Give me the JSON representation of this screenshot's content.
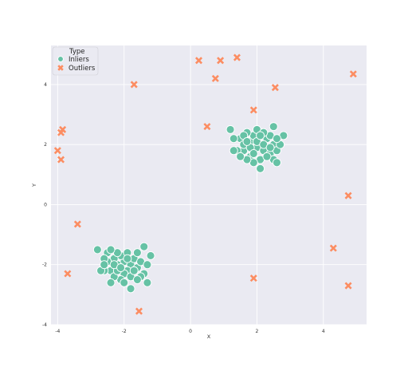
{
  "chart_data": {
    "type": "scatter",
    "xlabel": "X",
    "ylabel": "Y",
    "xlim": [
      -4.2,
      5.3
    ],
    "ylim": [
      -4.0,
      5.3
    ],
    "xticks": [
      -4,
      -2,
      0,
      2,
      4
    ],
    "yticks": [
      -4,
      -2,
      0,
      2,
      4
    ],
    "grid": true,
    "legend": {
      "title": "Type",
      "placement": "top-left"
    },
    "series": [
      {
        "name": "Inliers",
        "marker": "circle",
        "color": "#66c2a5",
        "points": [
          [
            -2.0,
            -1.9
          ],
          [
            -1.8,
            -2.0
          ],
          [
            -2.2,
            -2.0
          ],
          [
            -2.1,
            -1.7
          ],
          [
            -1.9,
            -2.2
          ],
          [
            -2.3,
            -1.8
          ],
          [
            -1.7,
            -1.8
          ],
          [
            -2.0,
            -2.3
          ],
          [
            -2.4,
            -2.2
          ],
          [
            -1.6,
            -2.1
          ],
          [
            -2.5,
            -1.9
          ],
          [
            -1.5,
            -1.9
          ],
          [
            -2.1,
            -2.5
          ],
          [
            -1.8,
            -2.4
          ],
          [
            -2.3,
            -2.4
          ],
          [
            -2.2,
            -1.6
          ],
          [
            -1.9,
            -1.6
          ],
          [
            -1.6,
            -1.6
          ],
          [
            -2.5,
            -1.6
          ],
          [
            -2.6,
            -2.2
          ],
          [
            -1.4,
            -2.3
          ],
          [
            -1.8,
            -2.8
          ],
          [
            -2.0,
            -2.6
          ],
          [
            -1.3,
            -2.6
          ],
          [
            -2.8,
            -1.5
          ],
          [
            -1.2,
            -1.7
          ],
          [
            -1.4,
            -1.4
          ],
          [
            -2.7,
            -2.2
          ],
          [
            -2.4,
            -2.6
          ],
          [
            -2.2,
            -2.2
          ],
          [
            -1.7,
            -2.2
          ],
          [
            -2.6,
            -1.8
          ],
          [
            -1.5,
            -2.4
          ],
          [
            -2.3,
            -2.0
          ],
          [
            -1.9,
            -1.8
          ],
          [
            -2.1,
            -2.1
          ],
          [
            -2.6,
            -2.0
          ],
          [
            -1.6,
            -2.5
          ],
          [
            -2.4,
            -1.5
          ],
          [
            -1.3,
            -2.0
          ],
          [
            2.0,
            1.9
          ],
          [
            1.8,
            2.1
          ],
          [
            2.2,
            1.8
          ],
          [
            1.9,
            2.3
          ],
          [
            2.3,
            2.2
          ],
          [
            1.6,
            1.8
          ],
          [
            2.4,
            1.7
          ],
          [
            1.7,
            2.4
          ],
          [
            2.1,
            1.5
          ],
          [
            2.5,
            2.0
          ],
          [
            1.5,
            2.2
          ],
          [
            2.0,
            2.5
          ],
          [
            1.8,
            1.6
          ],
          [
            2.4,
            2.3
          ],
          [
            1.6,
            2.0
          ],
          [
            2.2,
            2.4
          ],
          [
            2.6,
            1.8
          ],
          [
            1.4,
            1.8
          ],
          [
            1.9,
            1.4
          ],
          [
            2.5,
            1.5
          ],
          [
            1.3,
            2.2
          ],
          [
            2.7,
            2.0
          ],
          [
            1.7,
            1.5
          ],
          [
            2.8,
            2.3
          ],
          [
            1.2,
            2.5
          ],
          [
            2.5,
            2.6
          ],
          [
            2.1,
            1.2
          ],
          [
            2.6,
            1.4
          ],
          [
            1.3,
            1.8
          ],
          [
            2.0,
            2.1
          ],
          [
            1.8,
            1.9
          ],
          [
            2.3,
            1.6
          ],
          [
            1.6,
            2.3
          ],
          [
            2.2,
            2.0
          ],
          [
            1.9,
            1.7
          ],
          [
            2.4,
            1.9
          ],
          [
            1.7,
            2.1
          ],
          [
            2.1,
            2.3
          ],
          [
            1.5,
            1.6
          ],
          [
            2.6,
            2.2
          ]
        ]
      },
      {
        "name": "Outliers",
        "marker": "x",
        "color": "#fc8d62",
        "points": [
          [
            -4.0,
            1.8
          ],
          [
            -3.9,
            2.4
          ],
          [
            -3.85,
            2.5
          ],
          [
            -3.9,
            1.5
          ],
          [
            -3.4,
            -0.65
          ],
          [
            -3.7,
            -2.3
          ],
          [
            -1.7,
            4.0
          ],
          [
            -1.55,
            -3.55
          ],
          [
            0.25,
            4.8
          ],
          [
            0.75,
            4.2
          ],
          [
            0.9,
            4.8
          ],
          [
            1.4,
            4.9
          ],
          [
            0.5,
            2.6
          ],
          [
            1.9,
            3.15
          ],
          [
            2.55,
            3.9
          ],
          [
            1.9,
            -2.45
          ],
          [
            4.9,
            4.35
          ],
          [
            4.75,
            0.3
          ],
          [
            4.3,
            -1.45
          ],
          [
            4.75,
            -2.7
          ]
        ]
      }
    ]
  }
}
